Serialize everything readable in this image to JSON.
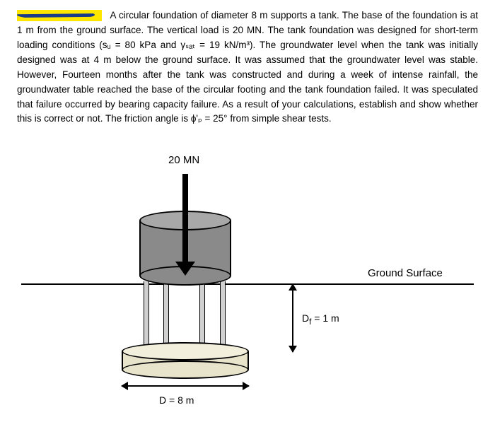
{
  "problem": {
    "text": "A circular foundation of diameter 8 m supports a tank. The base of the foundation is at 1 m from the ground surface. The vertical load is 20 MN. The tank foundation was designed for short-term loading conditions (sᵤ = 80 kPa and γₛₐₜ = 19 kN/m³). The groundwater level when the tank was initially designed was at 4 m below the ground surface. It was assumed that the groundwater level was stable. However, Fourteen months after the tank was constructed and during a week of intense rainfall, the groundwater table reached the base of the circular footing and the tank foundation failed. It was speculated that failure occurred by bearing capacity failure. As a result of your calculations, establish and show whether this is correct or not. The friction angle is ϕ'ₚ = 25° from simple shear tests."
  },
  "diagram": {
    "type": "infographic",
    "load_label": "20 MN",
    "ground_label": "Ground Surface",
    "df_label": "D",
    "df_sub": "f",
    "df_value": " = 1 m",
    "d_label": "D = 8 m",
    "colors": {
      "tank_top": "#a8a8a8",
      "tank_body": "#8a8a8a",
      "foundation": "#f2efdc",
      "foundation_side": "#e8e4cc",
      "legs": "#d0d0d0",
      "background": "#ffffff",
      "lines": "#000000",
      "highlight": "#ffe600",
      "scribble": "#1a3a8a"
    },
    "dimensions": {
      "diameter_m": 8,
      "depth_m": 1,
      "load_MN": 20
    },
    "font_family": "Arial",
    "label_fontsize": 15
  }
}
